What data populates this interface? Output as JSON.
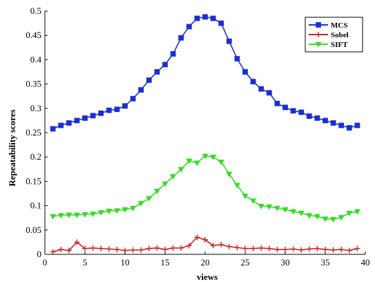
{
  "chart_data": {
    "type": "line",
    "xlabel": "views",
    "ylabel": "Repeatability scores",
    "xlim": [
      0,
      40
    ],
    "ylim": [
      0,
      0.5
    ],
    "xticks": [
      0,
      5,
      10,
      15,
      20,
      25,
      30,
      35,
      40
    ],
    "yticks": [
      0,
      0.05,
      0.1,
      0.15,
      0.2,
      0.25,
      0.3,
      0.35,
      0.4,
      0.45,
      0.5
    ],
    "xtick_labels": [
      "0",
      "5",
      "10",
      "15",
      "20",
      "25",
      "30",
      "35",
      "40"
    ],
    "ytick_labels": [
      "0",
      "0.05",
      "0.1",
      "0.15",
      "0.2",
      "0.25",
      "0.3",
      "0.35",
      "0.4",
      "0.45",
      "0.5"
    ],
    "legend_position": "top-right",
    "grid": false,
    "x": [
      1,
      2,
      3,
      4,
      5,
      6,
      7,
      8,
      9,
      10,
      11,
      12,
      13,
      14,
      15,
      16,
      17,
      18,
      19,
      20,
      21,
      22,
      23,
      24,
      25,
      26,
      27,
      28,
      29,
      30,
      31,
      32,
      33,
      34,
      35,
      36,
      37,
      38,
      39
    ],
    "series": [
      {
        "name": "MCS",
        "color": "#1a2fd8",
        "marker": "square",
        "values": [
          0.258,
          0.265,
          0.27,
          0.275,
          0.28,
          0.285,
          0.29,
          0.296,
          0.298,
          0.305,
          0.32,
          0.338,
          0.358,
          0.375,
          0.39,
          0.412,
          0.445,
          0.468,
          0.485,
          0.488,
          0.485,
          0.475,
          0.438,
          0.402,
          0.375,
          0.355,
          0.34,
          0.332,
          0.31,
          0.302,
          0.295,
          0.292,
          0.284,
          0.28,
          0.275,
          0.27,
          0.265,
          0.26,
          0.265
        ]
      },
      {
        "name": "Sobel",
        "color": "#cc2222",
        "marker": "plus",
        "values": [
          0.005,
          0.01,
          0.008,
          0.025,
          0.012,
          0.013,
          0.012,
          0.011,
          0.01,
          0.008,
          0.009,
          0.009,
          0.012,
          0.013,
          0.01,
          0.013,
          0.013,
          0.018,
          0.035,
          0.03,
          0.018,
          0.02,
          0.016,
          0.014,
          0.012,
          0.012,
          0.013,
          0.012,
          0.01,
          0.01,
          0.011,
          0.009,
          0.011,
          0.012,
          0.01,
          0.009,
          0.01,
          0.008,
          0.012
        ]
      },
      {
        "name": "SIFT",
        "color": "#33dd22",
        "marker": "triangle-down",
        "values": [
          0.078,
          0.08,
          0.081,
          0.081,
          0.082,
          0.083,
          0.086,
          0.089,
          0.09,
          0.092,
          0.095,
          0.105,
          0.115,
          0.13,
          0.145,
          0.16,
          0.175,
          0.192,
          0.188,
          0.202,
          0.2,
          0.19,
          0.165,
          0.142,
          0.12,
          0.11,
          0.099,
          0.098,
          0.095,
          0.092,
          0.088,
          0.085,
          0.08,
          0.078,
          0.073,
          0.072,
          0.076,
          0.085,
          0.088
        ]
      }
    ]
  }
}
